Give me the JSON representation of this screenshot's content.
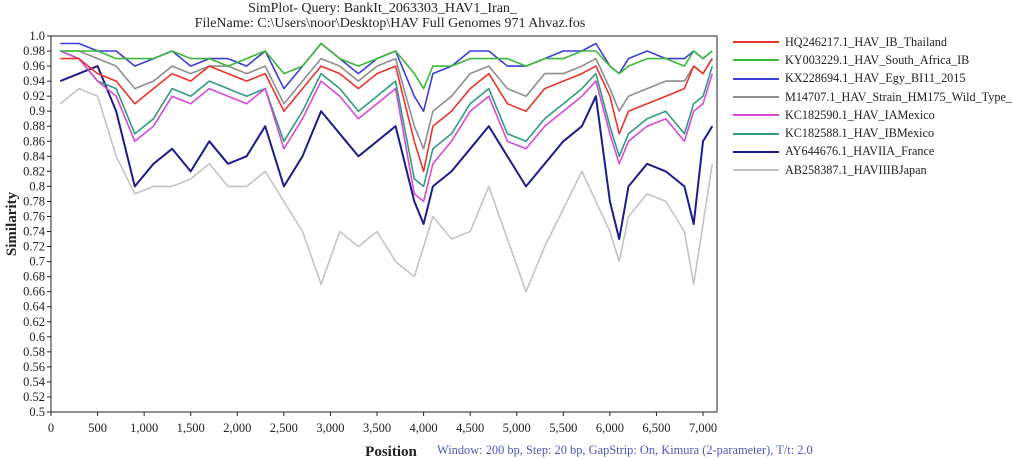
{
  "title_line1": "SimPlot- Query: BankIt_2063303_HAV1_Iran_",
  "title_line2": "FileName: C:\\Users\\noor\\Desktop\\HAV Full Genomes 971 Ahvaz.fos",
  "footnote": "Window: 200 bp, Step: 20 bp, GapStrip: On, Kimura (2-parameter), T/t: 2.0",
  "chart_data": {
    "type": "line",
    "title": "SimPlot- Query: BankIt_2063303_HAV1_Iran_",
    "subtitle": "FileName: C:\\Users\\noor\\Desktop\\HAV Full Genomes 971 Ahvaz.fos",
    "xlabel": "Position",
    "ylabel": "Similarity",
    "xlim": [
      0,
      7150
    ],
    "ylim": [
      0.5,
      1.0
    ],
    "xticks": [
      "0",
      "500",
      "1,000",
      "1,500",
      "2,000",
      "2,500",
      "3,000",
      "3,500",
      "4,000",
      "4,500",
      "5,000",
      "5,500",
      "6,000",
      "6,500",
      "7,000"
    ],
    "xtick_values": [
      0,
      500,
      1000,
      1500,
      2000,
      2500,
      3000,
      3500,
      4000,
      4500,
      5000,
      5500,
      6000,
      6500,
      7000
    ],
    "yticks": [
      "0.5",
      "0.52",
      "0.54",
      "0.56",
      "0.58",
      "0.6",
      "0.62",
      "0.64",
      "0.66",
      "0.68",
      "0.7",
      "0.72",
      "0.74",
      "0.76",
      "0.78",
      "0.8",
      "0.82",
      "0.84",
      "0.86",
      "0.88",
      "0.9",
      "0.92",
      "0.94",
      "0.96",
      "0.98",
      "1.0"
    ],
    "ytick_values": [
      0.5,
      0.52,
      0.54,
      0.56,
      0.58,
      0.6,
      0.62,
      0.64,
      0.66,
      0.68,
      0.7,
      0.72,
      0.74,
      0.76,
      0.78,
      0.8,
      0.82,
      0.84,
      0.86,
      0.88,
      0.9,
      0.92,
      0.94,
      0.96,
      0.98,
      1.0
    ],
    "legend_position": "right",
    "grid": false,
    "x": [
      100,
      300,
      500,
      700,
      900,
      1100,
      1300,
      1500,
      1700,
      1900,
      2100,
      2300,
      2500,
      2700,
      2900,
      3100,
      3300,
      3500,
      3700,
      3900,
      4000,
      4100,
      4300,
      4500,
      4700,
      4900,
      5100,
      5300,
      5500,
      5700,
      5850,
      6000,
      6100,
      6200,
      6400,
      6600,
      6800,
      6900,
      7000,
      7100
    ],
    "series": [
      {
        "name": "HQ246217.1_HAV_IB_Thailand",
        "color": "#e8352b",
        "values": [
          0.97,
          0.97,
          0.95,
          0.94,
          0.91,
          0.93,
          0.95,
          0.94,
          0.96,
          0.95,
          0.94,
          0.95,
          0.9,
          0.93,
          0.96,
          0.95,
          0.93,
          0.95,
          0.96,
          0.86,
          0.82,
          0.88,
          0.9,
          0.93,
          0.95,
          0.91,
          0.9,
          0.93,
          0.94,
          0.95,
          0.96,
          0.92,
          0.87,
          0.9,
          0.91,
          0.92,
          0.93,
          0.96,
          0.95,
          0.97
        ]
      },
      {
        "name": "KY003229.1_HAV_South_Africa_IB",
        "color": "#3cb83c",
        "values": [
          0.98,
          0.98,
          0.98,
          0.97,
          0.97,
          0.97,
          0.98,
          0.97,
          0.97,
          0.96,
          0.97,
          0.98,
          0.95,
          0.96,
          0.99,
          0.97,
          0.96,
          0.97,
          0.98,
          0.95,
          0.93,
          0.96,
          0.96,
          0.97,
          0.97,
          0.97,
          0.96,
          0.97,
          0.97,
          0.98,
          0.98,
          0.96,
          0.95,
          0.96,
          0.97,
          0.97,
          0.96,
          0.98,
          0.97,
          0.98
        ]
      },
      {
        "name": "KX228694.1_HAV_Egy_BI11_2015",
        "color": "#3a3fd8",
        "values": [
          0.99,
          0.99,
          0.98,
          0.98,
          0.96,
          0.97,
          0.98,
          0.96,
          0.97,
          0.97,
          0.96,
          0.98,
          0.93,
          0.96,
          0.99,
          0.97,
          0.95,
          0.97,
          0.98,
          0.92,
          0.9,
          0.95,
          0.96,
          0.98,
          0.98,
          0.96,
          0.96,
          0.97,
          0.98,
          0.98,
          0.99,
          0.96,
          0.95,
          0.97,
          0.98,
          0.97,
          0.97,
          0.98,
          0.97,
          0.98
        ]
      },
      {
        "name": "M14707.1_HAV_Strain_HM175_Wild_Type_",
        "color": "#8e8e8e",
        "values": [
          0.98,
          0.98,
          0.97,
          0.96,
          0.93,
          0.94,
          0.96,
          0.95,
          0.96,
          0.96,
          0.95,
          0.96,
          0.91,
          0.94,
          0.97,
          0.96,
          0.94,
          0.96,
          0.97,
          0.88,
          0.85,
          0.9,
          0.92,
          0.95,
          0.96,
          0.93,
          0.92,
          0.95,
          0.95,
          0.96,
          0.97,
          0.93,
          0.9,
          0.92,
          0.93,
          0.94,
          0.94,
          0.96,
          0.95,
          0.97
        ]
      },
      {
        "name": "KC182590.1_HAV_IAMexico",
        "color": "#d64ad6",
        "values": [
          0.98,
          0.97,
          0.94,
          0.92,
          0.86,
          0.88,
          0.92,
          0.91,
          0.93,
          0.92,
          0.91,
          0.93,
          0.85,
          0.89,
          0.94,
          0.92,
          0.89,
          0.91,
          0.93,
          0.79,
          0.78,
          0.83,
          0.86,
          0.9,
          0.92,
          0.86,
          0.85,
          0.88,
          0.9,
          0.92,
          0.94,
          0.87,
          0.83,
          0.86,
          0.88,
          0.89,
          0.86,
          0.9,
          0.91,
          0.95
        ]
      },
      {
        "name": "KC182588.1_HAV_IBMexico",
        "color": "#2f9c82",
        "values": [
          0.98,
          0.97,
          0.94,
          0.93,
          0.87,
          0.89,
          0.93,
          0.92,
          0.94,
          0.93,
          0.92,
          0.93,
          0.86,
          0.9,
          0.95,
          0.93,
          0.9,
          0.92,
          0.94,
          0.81,
          0.8,
          0.85,
          0.87,
          0.91,
          0.93,
          0.87,
          0.86,
          0.89,
          0.91,
          0.93,
          0.95,
          0.88,
          0.84,
          0.87,
          0.89,
          0.9,
          0.87,
          0.91,
          0.92,
          0.96
        ]
      },
      {
        "name": "AY644676.1_HAVIIA_France",
        "color": "#1c1c8a",
        "values": [
          0.94,
          0.95,
          0.96,
          0.9,
          0.8,
          0.83,
          0.85,
          0.82,
          0.86,
          0.83,
          0.84,
          0.88,
          0.8,
          0.84,
          0.9,
          0.87,
          0.84,
          0.86,
          0.88,
          0.78,
          0.75,
          0.8,
          0.82,
          0.85,
          0.88,
          0.84,
          0.8,
          0.83,
          0.86,
          0.88,
          0.92,
          0.78,
          0.73,
          0.8,
          0.83,
          0.82,
          0.8,
          0.75,
          0.86,
          0.88
        ]
      },
      {
        "name": "AB258387.1_HAVIIIBJapan",
        "color": "#c4c4c4",
        "values": [
          0.91,
          0.93,
          0.92,
          0.84,
          0.79,
          0.8,
          0.8,
          0.81,
          0.83,
          0.8,
          0.8,
          0.82,
          0.78,
          0.74,
          0.67,
          0.74,
          0.72,
          0.74,
          0.7,
          0.68,
          0.72,
          0.76,
          0.73,
          0.74,
          0.8,
          0.73,
          0.66,
          0.72,
          0.77,
          0.82,
          0.78,
          0.74,
          0.7,
          0.76,
          0.79,
          0.78,
          0.74,
          0.67,
          0.75,
          0.83
        ]
      }
    ]
  }
}
